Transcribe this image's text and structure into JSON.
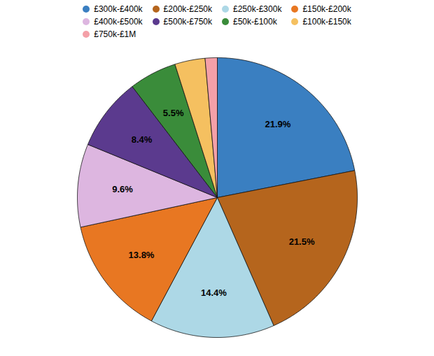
{
  "chart_data": {
    "type": "pie",
    "categories": [
      "£300k-£400k",
      "£200k-£250k",
      "£250k-£300k",
      "£150k-£200k",
      "£400k-£500k",
      "£500k-£750k",
      "£50k-£100k",
      "£100k-£150k",
      "£750k-£1M"
    ],
    "values": [
      21.9,
      21.5,
      14.4,
      13.8,
      9.6,
      8.4,
      5.5,
      3.5,
      1.4
    ],
    "colors": [
      "#3a7fc1",
      "#b5651d",
      "#add8e6",
      "#e87722",
      "#ddb6e0",
      "#5b3a8e",
      "#3a8c3a",
      "#f5c060",
      "#f4a0a8"
    ],
    "data_labels": true,
    "value_labels": [
      "21.9%",
      "21.5%",
      "14.4%",
      "13.8%",
      "9.6%",
      "8.4%",
      "5.5%",
      null,
      null
    ],
    "legend": "top"
  }
}
